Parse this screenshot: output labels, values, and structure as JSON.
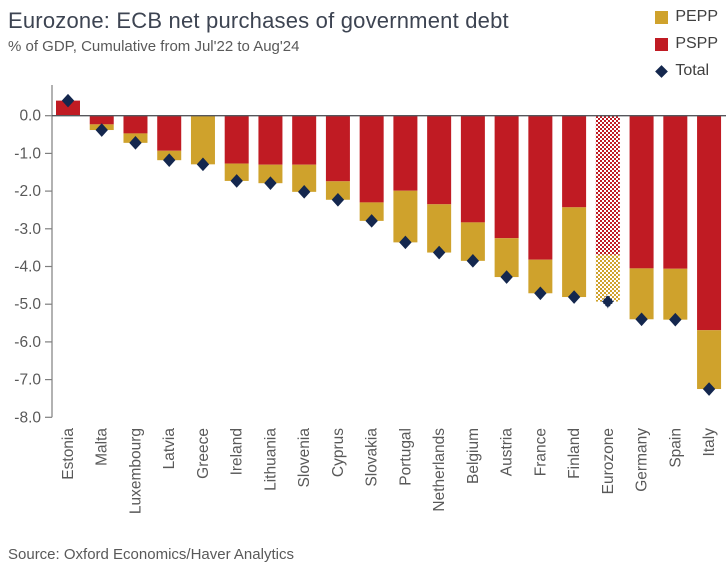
{
  "header": {
    "title": "Eurozone: ECB net purchases of government debt",
    "subtitle": "% of GDP, Cumulative from Jul'22 to Aug'24"
  },
  "legend": [
    {
      "label": "PEPP",
      "shape": "square",
      "color": "#CFA22C"
    },
    {
      "label": "PSPP",
      "shape": "square",
      "color": "#C01B23"
    },
    {
      "label": "Total",
      "shape": "diamond",
      "color": "#14274E"
    }
  ],
  "source": "Source: Oxford Economics/Haver Analytics",
  "colors": {
    "pepp": "#CFA22C",
    "pspp": "#C01B23",
    "total": "#14274E",
    "axis": "#7f7f7f",
    "zero_line": "#55565b",
    "tick_label": "#595959",
    "category_label": "#595959"
  },
  "chart_data": {
    "type": "bar",
    "stacked": true,
    "title": "Eurozone: ECB net purchases of government debt",
    "subtitle": "% of GDP, Cumulative from Jul'22 to Aug'24",
    "xlabel": "",
    "ylabel": "% of GDP",
    "grid": false,
    "legend_position": "top-right",
    "ylim": [
      -8.0,
      0.8
    ],
    "yticks": [
      0.0,
      -1.0,
      -2.0,
      -3.0,
      -4.0,
      -5.0,
      -6.0,
      -7.0,
      -8.0
    ],
    "ytick_labels": [
      "0.0",
      "-1.0",
      "-2.0",
      "-3.0",
      "-4.0",
      "-5.0",
      "-6.0",
      "-7.0",
      "-8.0"
    ],
    "categories": [
      "Estonia",
      "Malta",
      "Luxembourg",
      "Latvia",
      "Greece",
      "Ireland",
      "Lithuania",
      "Slovenia",
      "Cyprus",
      "Slovakia",
      "Portugal",
      "Netherlands",
      "Belgium",
      "Austria",
      "France",
      "Finland",
      "Eurozone",
      "Germany",
      "Spain",
      "Italy"
    ],
    "series": [
      {
        "name": "PSPP",
        "color": "#C01B23",
        "values": [
          0.4,
          -0.23,
          -0.47,
          -0.93,
          0.0,
          -1.27,
          -1.3,
          -1.3,
          -1.74,
          -2.3,
          -1.99,
          -2.35,
          -2.83,
          -3.25,
          -3.82,
          -2.43,
          -3.69,
          -4.05,
          -4.06,
          -5.69
        ]
      },
      {
        "name": "PEPP",
        "color": "#CFA22C",
        "values": [
          0.0,
          -0.15,
          -0.25,
          -0.25,
          -1.29,
          -0.46,
          -0.49,
          -0.72,
          -0.49,
          -0.49,
          -1.37,
          -1.28,
          -1.02,
          -1.03,
          -0.89,
          -2.38,
          -1.24,
          -1.35,
          -1.35,
          -1.56
        ]
      }
    ],
    "totals": {
      "name": "Total",
      "marker": "diamond",
      "color": "#14274E",
      "values": [
        0.4,
        -0.38,
        -0.72,
        -1.18,
        -1.29,
        -1.73,
        -1.79,
        -2.02,
        -2.23,
        -2.79,
        -3.36,
        -3.63,
        -3.85,
        -4.28,
        -4.71,
        -4.81,
        -4.93,
        -5.4,
        -5.41,
        -7.25
      ]
    },
    "highlighted_category": "Eurozone",
    "highlight_style": "checker-pattern"
  }
}
